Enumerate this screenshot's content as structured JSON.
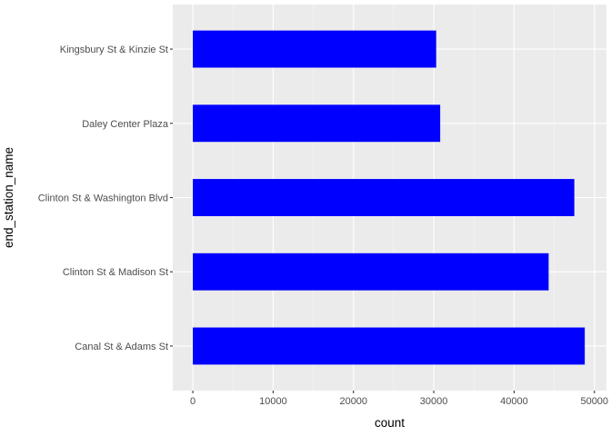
{
  "chart_data": {
    "type": "bar",
    "orientation": "horizontal",
    "categories": [
      "Canal St & Adams St",
      "Clinton St & Madison St",
      "Clinton St & Washington Blvd",
      "Daley Center Plaza",
      "Kingsbury St & Kinzie St"
    ],
    "values": [
      48800,
      44300,
      47500,
      30800,
      30300
    ],
    "xlabel": "count",
    "ylabel": "end_station_name",
    "xlim": [
      -2500,
      51500
    ],
    "xticks": [
      0,
      10000,
      20000,
      30000,
      40000,
      50000
    ],
    "xtick_labels": [
      "0",
      "10000",
      "20000",
      "30000",
      "40000",
      "50000"
    ],
    "grid": true,
    "colors": {
      "bar": "#0000ff",
      "panel_background": "#ebebeb",
      "grid_major": "#ffffff",
      "tick_text": "#4d4d4d"
    }
  }
}
